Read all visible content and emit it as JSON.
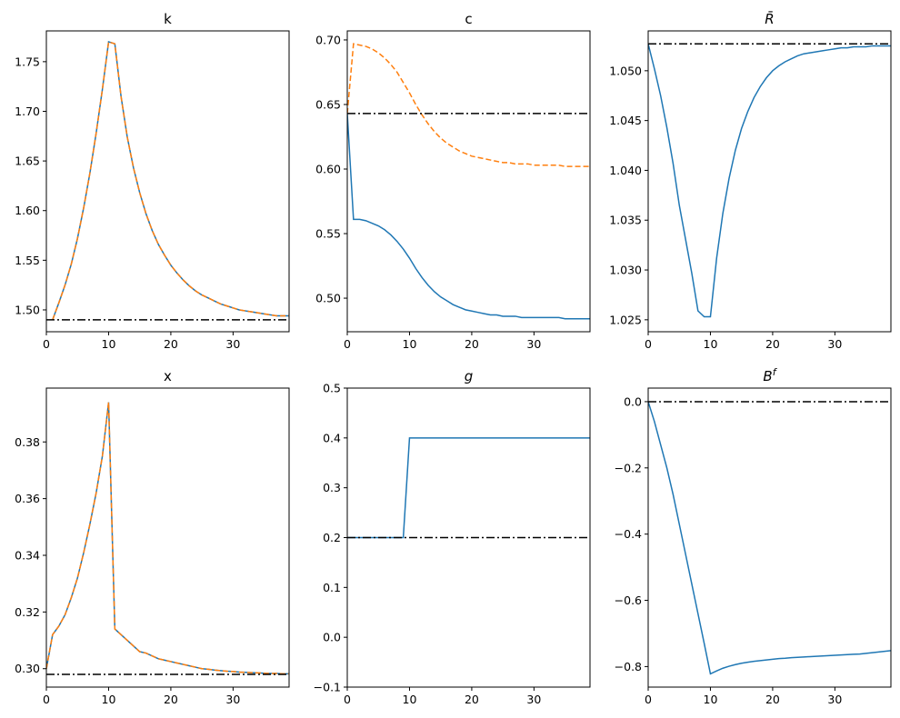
{
  "chart_data": [
    {
      "type": "line",
      "title": "k",
      "title_math": false,
      "xlim": [
        0,
        39
      ],
      "ylim": [
        1.478,
        1.781
      ],
      "xticks": [
        0,
        10,
        20,
        30
      ],
      "yticks": [
        1.5,
        1.55,
        1.6,
        1.65,
        1.7,
        1.75
      ],
      "ytick_decimals": 2,
      "series": [
        {
          "color": "#1f77b4",
          "dash": "solid",
          "x": [
            1,
            2,
            3,
            4,
            5,
            6,
            7,
            8,
            9,
            10,
            11,
            12,
            13,
            14,
            15,
            16,
            17,
            18,
            19,
            20,
            21,
            22,
            23,
            24,
            25,
            26,
            27,
            28,
            29,
            30,
            31,
            32,
            33,
            34,
            35,
            36,
            37,
            38,
            39
          ],
          "y": [
            1.49,
            1.507,
            1.525,
            1.546,
            1.572,
            1.603,
            1.638,
            1.678,
            1.722,
            1.77,
            1.768,
            1.715,
            1.674,
            1.643,
            1.618,
            1.597,
            1.58,
            1.566,
            1.555,
            1.545,
            1.537,
            1.53,
            1.524,
            1.519,
            1.515,
            1.512,
            1.509,
            1.506,
            1.504,
            1.502,
            1.5,
            1.499,
            1.498,
            1.497,
            1.496,
            1.495,
            1.494,
            1.494,
            1.494
          ]
        },
        {
          "color": "#ff7f0e",
          "dash": "dashed",
          "x": [
            1,
            2,
            3,
            4,
            5,
            6,
            7,
            8,
            9,
            10,
            11,
            12,
            13,
            14,
            15,
            16,
            17,
            18,
            19,
            20,
            21,
            22,
            23,
            24,
            25,
            26,
            27,
            28,
            29,
            30,
            31,
            32,
            33,
            34,
            35,
            36,
            37,
            38,
            39
          ],
          "y": [
            1.49,
            1.507,
            1.525,
            1.546,
            1.572,
            1.603,
            1.638,
            1.678,
            1.722,
            1.77,
            1.768,
            1.715,
            1.674,
            1.643,
            1.618,
            1.597,
            1.58,
            1.566,
            1.555,
            1.545,
            1.537,
            1.53,
            1.524,
            1.519,
            1.515,
            1.512,
            1.509,
            1.506,
            1.504,
            1.502,
            1.5,
            1.499,
            1.498,
            1.497,
            1.496,
            1.495,
            1.494,
            1.494,
            1.494
          ]
        },
        {
          "color": "#000000",
          "dash": "dashdot",
          "x": [
            0,
            39
          ],
          "y": [
            1.49,
            1.49
          ]
        }
      ]
    },
    {
      "type": "line",
      "title": "c",
      "title_math": false,
      "xlim": [
        0,
        39
      ],
      "ylim": [
        0.474,
        0.707
      ],
      "xticks": [
        0,
        10,
        20,
        30
      ],
      "yticks": [
        0.5,
        0.55,
        0.6,
        0.65,
        0.7
      ],
      "ytick_decimals": 2,
      "series": [
        {
          "color": "#1f77b4",
          "dash": "solid",
          "x": [
            0,
            1,
            2,
            3,
            4,
            5,
            6,
            7,
            8,
            9,
            10,
            11,
            12,
            13,
            14,
            15,
            16,
            17,
            18,
            19,
            20,
            21,
            22,
            23,
            24,
            25,
            26,
            27,
            28,
            29,
            30,
            31,
            32,
            33,
            34,
            35,
            36,
            37,
            38,
            39
          ],
          "y": [
            0.643,
            0.561,
            0.561,
            0.56,
            0.558,
            0.556,
            0.553,
            0.549,
            0.544,
            0.538,
            0.531,
            0.523,
            0.516,
            0.51,
            0.505,
            0.501,
            0.498,
            0.495,
            0.493,
            0.491,
            0.49,
            0.489,
            0.488,
            0.487,
            0.487,
            0.486,
            0.486,
            0.486,
            0.485,
            0.485,
            0.485,
            0.485,
            0.485,
            0.485,
            0.485,
            0.484,
            0.484,
            0.484,
            0.484,
            0.484
          ]
        },
        {
          "color": "#ff7f0e",
          "dash": "dashed",
          "x": [
            0,
            1,
            2,
            3,
            4,
            5,
            6,
            7,
            8,
            9,
            10,
            11,
            12,
            13,
            14,
            15,
            16,
            17,
            18,
            19,
            20,
            21,
            22,
            23,
            24,
            25,
            26,
            27,
            28,
            29,
            30,
            31,
            32,
            33,
            34,
            35,
            36,
            37,
            38,
            39
          ],
          "y": [
            0.643,
            0.697,
            0.696,
            0.695,
            0.693,
            0.69,
            0.686,
            0.681,
            0.675,
            0.667,
            0.659,
            0.65,
            0.642,
            0.635,
            0.629,
            0.624,
            0.62,
            0.617,
            0.614,
            0.612,
            0.61,
            0.609,
            0.608,
            0.607,
            0.606,
            0.605,
            0.605,
            0.604,
            0.604,
            0.604,
            0.603,
            0.603,
            0.603,
            0.603,
            0.603,
            0.602,
            0.602,
            0.602,
            0.602,
            0.602
          ]
        },
        {
          "color": "#000000",
          "dash": "dashdot",
          "x": [
            0,
            39
          ],
          "y": [
            0.643,
            0.643
          ]
        }
      ]
    },
    {
      "type": "line",
      "title": "R̄",
      "title_math": true,
      "xlim": [
        0,
        39
      ],
      "ylim": [
        1.0238,
        1.054
      ],
      "xticks": [
        0,
        10,
        20,
        30
      ],
      "yticks": [
        1.025,
        1.03,
        1.035,
        1.04,
        1.045,
        1.05
      ],
      "ytick_decimals": 3,
      "series": [
        {
          "color": "#1f77b4",
          "dash": "solid",
          "x": [
            0,
            1,
            2,
            3,
            4,
            5,
            6,
            7,
            8,
            9,
            10,
            11,
            12,
            13,
            14,
            15,
            16,
            17,
            18,
            19,
            20,
            21,
            22,
            23,
            24,
            25,
            26,
            27,
            28,
            29,
            30,
            31,
            32,
            33,
            34,
            35,
            36,
            37,
            38,
            39
          ],
          "y": [
            1.0527,
            1.0502,
            1.0475,
            1.0443,
            1.0407,
            1.0365,
            1.0331,
            1.0297,
            1.0259,
            1.0253,
            1.0253,
            1.0312,
            1.0357,
            1.0392,
            1.042,
            1.0442,
            1.0459,
            1.0473,
            1.0484,
            1.0493,
            1.05,
            1.0505,
            1.0509,
            1.0512,
            1.0515,
            1.0517,
            1.0518,
            1.0519,
            1.052,
            1.0521,
            1.0522,
            1.0523,
            1.0523,
            1.0524,
            1.0524,
            1.0524,
            1.0525,
            1.0525,
            1.0525,
            1.0525
          ]
        },
        {
          "color": "#000000",
          "dash": "dashdot",
          "x": [
            0,
            39
          ],
          "y": [
            1.0527,
            1.0527
          ]
        }
      ]
    },
    {
      "type": "line",
      "title": "x",
      "title_math": false,
      "xlim": [
        0,
        39
      ],
      "ylim": [
        0.2935,
        0.399
      ],
      "xticks": [
        0,
        10,
        20,
        30
      ],
      "yticks": [
        0.3,
        0.32,
        0.34,
        0.36,
        0.38
      ],
      "ytick_decimals": 2,
      "series": [
        {
          "color": "#1f77b4",
          "dash": "solid",
          "x": [
            0,
            1,
            2,
            3,
            4,
            5,
            6,
            7,
            8,
            9,
            10,
            11,
            12,
            13,
            14,
            15,
            16,
            17,
            18,
            19,
            20,
            21,
            22,
            23,
            24,
            25,
            26,
            27,
            28,
            29,
            30,
            31,
            32,
            33,
            34,
            35,
            36,
            37,
            38,
            39
          ],
          "y": [
            0.3,
            0.312,
            0.315,
            0.319,
            0.325,
            0.332,
            0.341,
            0.351,
            0.362,
            0.375,
            0.394,
            0.314,
            0.312,
            0.31,
            0.308,
            0.306,
            0.3055,
            0.3045,
            0.3035,
            0.303,
            0.3025,
            0.302,
            0.3015,
            0.301,
            0.3005,
            0.3,
            0.2998,
            0.2995,
            0.2993,
            0.2991,
            0.299,
            0.2988,
            0.2987,
            0.2986,
            0.2985,
            0.2984,
            0.2983,
            0.2983,
            0.2982,
            0.2982
          ]
        },
        {
          "color": "#ff7f0e",
          "dash": "dashed",
          "x": [
            0,
            1,
            2,
            3,
            4,
            5,
            6,
            7,
            8,
            9,
            10,
            11,
            12,
            13,
            14,
            15,
            16,
            17,
            18,
            19,
            20,
            21,
            22,
            23,
            24,
            25,
            26,
            27,
            28,
            29,
            30,
            31,
            32,
            33,
            34,
            35,
            36,
            37,
            38,
            39
          ],
          "y": [
            0.3,
            0.312,
            0.315,
            0.319,
            0.325,
            0.332,
            0.341,
            0.351,
            0.362,
            0.375,
            0.394,
            0.314,
            0.312,
            0.31,
            0.308,
            0.306,
            0.3055,
            0.3045,
            0.3035,
            0.303,
            0.3025,
            0.302,
            0.3015,
            0.301,
            0.3005,
            0.3,
            0.2998,
            0.2995,
            0.2993,
            0.2991,
            0.299,
            0.2988,
            0.2987,
            0.2986,
            0.2985,
            0.2984,
            0.2983,
            0.2983,
            0.2982,
            0.2982
          ]
        },
        {
          "color": "#000000",
          "dash": "dashdot",
          "x": [
            0,
            39
          ],
          "y": [
            0.298,
            0.298
          ]
        }
      ]
    },
    {
      "type": "line",
      "title": "g",
      "title_math": true,
      "xlim": [
        0,
        39
      ],
      "ylim": [
        -0.1,
        0.5
      ],
      "xticks": [
        0,
        10,
        20,
        30
      ],
      "yticks": [
        -0.1,
        0.0,
        0.1,
        0.2,
        0.3,
        0.4,
        0.5
      ],
      "ytick_decimals": 1,
      "series": [
        {
          "color": "#1f77b4",
          "dash": "solid",
          "x": [
            0,
            9,
            10,
            39
          ],
          "y": [
            0.2,
            0.2,
            0.4,
            0.4
          ]
        },
        {
          "color": "#000000",
          "dash": "dashdot",
          "x": [
            0,
            39
          ],
          "y": [
            0.2,
            0.2
          ]
        }
      ]
    },
    {
      "type": "line",
      "title": "B",
      "title_sup": "f",
      "title_math": true,
      "xlim": [
        0,
        39
      ],
      "ylim": [
        -0.862,
        0.041
      ],
      "xticks": [
        0,
        10,
        20,
        30
      ],
      "yticks": [
        -0.8,
        -0.6,
        -0.4,
        -0.2,
        0.0
      ],
      "ytick_decimals": 1,
      "series": [
        {
          "color": "#1f77b4",
          "dash": "solid",
          "x": [
            0,
            1,
            2,
            3,
            4,
            5,
            6,
            7,
            8,
            9,
            10,
            11,
            12,
            13,
            14,
            15,
            16,
            17,
            18,
            19,
            20,
            21,
            22,
            23,
            24,
            25,
            26,
            27,
            28,
            29,
            30,
            31,
            32,
            33,
            34,
            35,
            36,
            37,
            38,
            39
          ],
          "y": [
            0.0,
            -0.06,
            -0.13,
            -0.2,
            -0.28,
            -0.37,
            -0.46,
            -0.55,
            -0.64,
            -0.73,
            -0.822,
            -0.813,
            -0.805,
            -0.799,
            -0.794,
            -0.79,
            -0.787,
            -0.784,
            -0.782,
            -0.78,
            -0.778,
            -0.776,
            -0.775,
            -0.773,
            -0.772,
            -0.771,
            -0.77,
            -0.769,
            -0.768,
            -0.767,
            -0.766,
            -0.765,
            -0.764,
            -0.763,
            -0.762,
            -0.76,
            -0.758,
            -0.756,
            -0.754,
            -0.752
          ]
        },
        {
          "color": "#000000",
          "dash": "dashdot",
          "x": [
            0,
            39
          ],
          "y": [
            0.0,
            0.0
          ]
        }
      ]
    }
  ]
}
